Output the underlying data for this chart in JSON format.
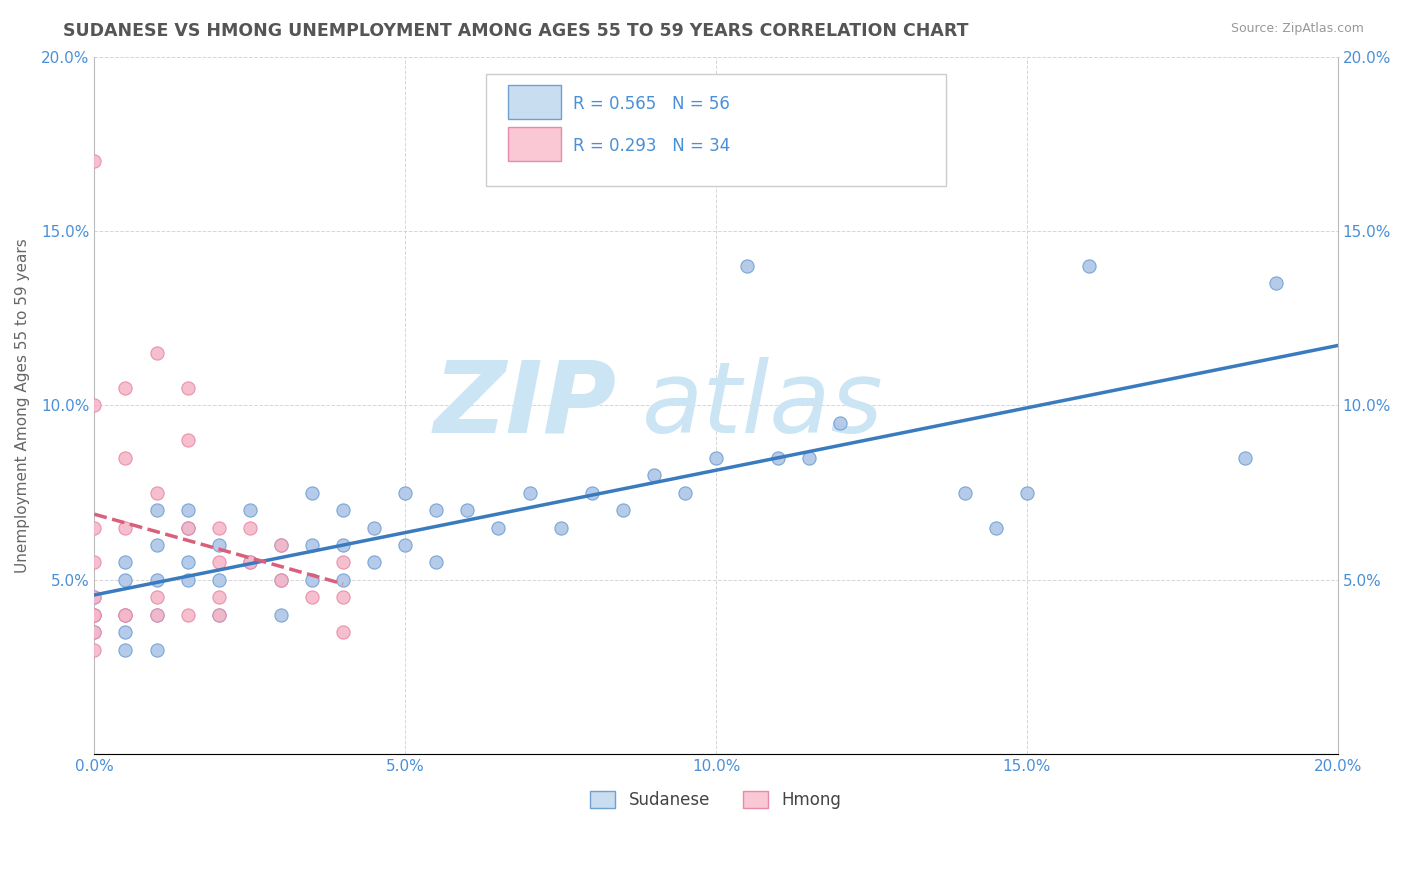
{
  "title": "SUDANESE VS HMONG UNEMPLOYMENT AMONG AGES 55 TO 59 YEARS CORRELATION CHART",
  "source": "Source: ZipAtlas.com",
  "ylabel": "Unemployment Among Ages 55 to 59 years",
  "xlim": [
    0.0,
    0.2
  ],
  "ylim": [
    0.0,
    0.2
  ],
  "xtick_labels": [
    "0.0%",
    "5.0%",
    "10.0%",
    "15.0%",
    "20.0%"
  ],
  "xtick_vals": [
    0.0,
    0.05,
    0.1,
    0.15,
    0.2
  ],
  "ytick_vals": [
    0.05,
    0.1,
    0.15,
    0.2
  ],
  "ytick_labels": [
    "5.0%",
    "10.0%",
    "15.0%",
    "20.0%"
  ],
  "sudanese_color": "#aec6e8",
  "hmong_color": "#f5b8c8",
  "sudanese_edge": "#6fa0d0",
  "hmong_edge": "#e88aaa",
  "regression_sudanese_color": "#3a7bbf",
  "regression_hmong_color": "#d95f7a",
  "legend_box_color_sudanese": "#c8ddf0",
  "legend_box_color_hmong": "#f9c8d4",
  "text_color_blue": "#4a90d9",
  "r_sudanese": 0.565,
  "n_sudanese": 56,
  "r_hmong": 0.293,
  "n_hmong": 34,
  "sudanese_x": [
    0.0,
    0.0,
    0.0,
    0.005,
    0.005,
    0.005,
    0.005,
    0.005,
    0.01,
    0.01,
    0.01,
    0.01,
    0.01,
    0.015,
    0.015,
    0.015,
    0.015,
    0.02,
    0.02,
    0.02,
    0.025,
    0.025,
    0.03,
    0.03,
    0.03,
    0.035,
    0.035,
    0.035,
    0.04,
    0.04,
    0.04,
    0.045,
    0.045,
    0.05,
    0.05,
    0.055,
    0.055,
    0.06,
    0.065,
    0.07,
    0.075,
    0.08,
    0.085,
    0.09,
    0.095,
    0.1,
    0.105,
    0.11,
    0.115,
    0.12,
    0.14,
    0.145,
    0.15,
    0.16,
    0.185,
    0.19
  ],
  "sudanese_y": [
    0.035,
    0.04,
    0.045,
    0.03,
    0.035,
    0.04,
    0.05,
    0.055,
    0.03,
    0.04,
    0.05,
    0.06,
    0.07,
    0.05,
    0.055,
    0.065,
    0.07,
    0.04,
    0.05,
    0.06,
    0.055,
    0.07,
    0.04,
    0.05,
    0.06,
    0.05,
    0.06,
    0.075,
    0.05,
    0.06,
    0.07,
    0.055,
    0.065,
    0.06,
    0.075,
    0.055,
    0.07,
    0.07,
    0.065,
    0.075,
    0.065,
    0.075,
    0.07,
    0.08,
    0.075,
    0.085,
    0.14,
    0.085,
    0.085,
    0.095,
    0.075,
    0.065,
    0.075,
    0.14,
    0.085,
    0.135
  ],
  "hmong_x": [
    0.0,
    0.0,
    0.0,
    0.0,
    0.0,
    0.0,
    0.0,
    0.005,
    0.005,
    0.005,
    0.005,
    0.01,
    0.01,
    0.01,
    0.015,
    0.015,
    0.015,
    0.02,
    0.02,
    0.02,
    0.025,
    0.025,
    0.03,
    0.03,
    0.035,
    0.04,
    0.04,
    0.04,
    0.005,
    0.0,
    0.01,
    0.015,
    0.02,
    0.0
  ],
  "hmong_y": [
    0.17,
    0.1,
    0.065,
    0.055,
    0.045,
    0.035,
    0.03,
    0.105,
    0.085,
    0.065,
    0.04,
    0.115,
    0.075,
    0.045,
    0.105,
    0.09,
    0.065,
    0.065,
    0.055,
    0.045,
    0.065,
    0.055,
    0.06,
    0.05,
    0.045,
    0.055,
    0.045,
    0.035,
    0.04,
    0.04,
    0.04,
    0.04,
    0.04,
    0.04
  ],
  "watermark_left": "ZIP",
  "watermark_right": "atlas",
  "watermark_color": "#cce5f5",
  "watermark_fontsize": 72
}
